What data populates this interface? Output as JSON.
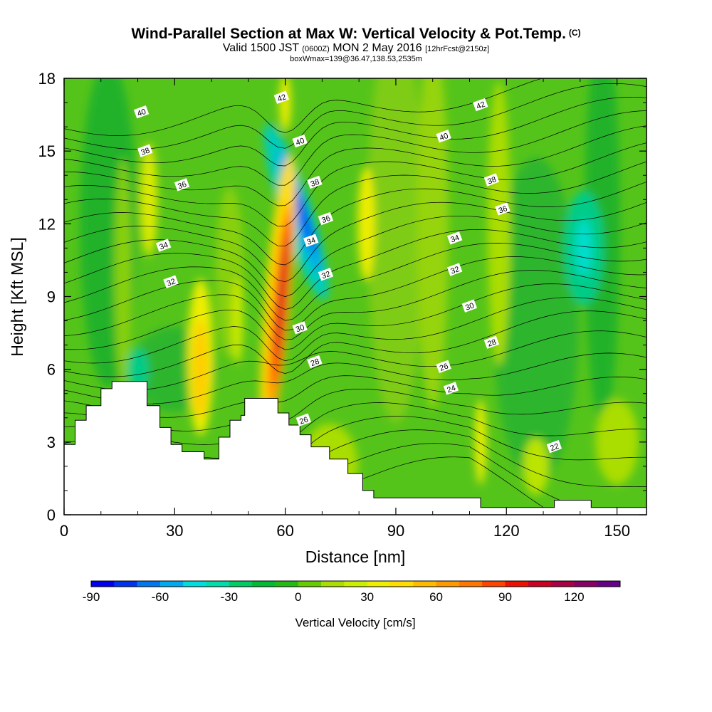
{
  "title": "Wind-Parallel Section at Max W: Vertical Velocity & Pot.Temp.",
  "title_mark": "(C)",
  "subtitle": {
    "main_a": "Valid 1500 JST",
    "small_a": "(0600Z)",
    "main_b": "MON 2 May 2016",
    "small_b": "[12hrFcst@2150z]"
  },
  "subtitle2": "boxWmax=139@36.47,138.53,2535m",
  "chart_data": {
    "type": "heatmap",
    "xlabel": "Distance [nm]",
    "ylabel": "Height [Kft MSL]",
    "xlim": [
      0,
      158
    ],
    "ylim": [
      0,
      18
    ],
    "x_ticks": [
      0,
      30,
      60,
      90,
      120,
      150
    ],
    "y_ticks": [
      0,
      3,
      6,
      9,
      12,
      15,
      18
    ],
    "colorbar": {
      "label": "Vertical Velocity [cm/s]",
      "tick_labels": [
        "-90",
        "-60",
        "-30",
        "0",
        "30",
        "60",
        "90",
        "120"
      ],
      "tick_values": [
        -90,
        -60,
        -30,
        0,
        30,
        60,
        90,
        120
      ],
      "range": [
        -90,
        140
      ],
      "colors": [
        "#0000ee",
        "#0033ee",
        "#0077ee",
        "#00aaee",
        "#00dddd",
        "#00ddaa",
        "#00cc66",
        "#00bb33",
        "#22bb11",
        "#66cc00",
        "#aadd00",
        "#ccee00",
        "#eeee00",
        "#ffdd00",
        "#ffbb00",
        "#ff9900",
        "#ff7700",
        "#ff4400",
        "#ee1100",
        "#cc0022",
        "#aa0044",
        "#880066",
        "#660088"
      ]
    },
    "terrain": [
      [
        0,
        2.9
      ],
      [
        3,
        3.9
      ],
      [
        6,
        4.5
      ],
      [
        10,
        5.2
      ],
      [
        13,
        5.5
      ],
      [
        22,
        5.5
      ],
      [
        22.5,
        4.5
      ],
      [
        26,
        3.6
      ],
      [
        29,
        2.9
      ],
      [
        32,
        2.6
      ],
      [
        38,
        2.3
      ],
      [
        42,
        3.2
      ],
      [
        45,
        3.9
      ],
      [
        48,
        4.1
      ],
      [
        49,
        4.8
      ],
      [
        57,
        4.8
      ],
      [
        58,
        4.2
      ],
      [
        61,
        3.7
      ],
      [
        64,
        3.3
      ],
      [
        67,
        2.8
      ],
      [
        72,
        2.3
      ],
      [
        77,
        1.7
      ],
      [
        81,
        1.0
      ],
      [
        84,
        0.7
      ],
      [
        92,
        0.7
      ],
      [
        103,
        0.7
      ],
      [
        113,
        0.3
      ],
      [
        121,
        0.3
      ],
      [
        132,
        0.3
      ],
      [
        133,
        0.6
      ],
      [
        140,
        0.6
      ],
      [
        143,
        0.3
      ],
      [
        158,
        0.3
      ]
    ],
    "theta_labels": [
      {
        "text": "42",
        "x": 59,
        "y": 17.2
      },
      {
        "text": "40",
        "x": 21,
        "y": 16.6
      },
      {
        "text": "38",
        "x": 22,
        "y": 15.0
      },
      {
        "text": "36",
        "x": 32,
        "y": 13.6
      },
      {
        "text": "34",
        "x": 27,
        "y": 11.1
      },
      {
        "text": "32",
        "x": 29,
        "y": 9.6
      },
      {
        "text": "40",
        "x": 64,
        "y": 15.4
      },
      {
        "text": "38",
        "x": 68,
        "y": 13.7
      },
      {
        "text": "36",
        "x": 71,
        "y": 12.2
      },
      {
        "text": "34",
        "x": 67,
        "y": 11.3
      },
      {
        "text": "32",
        "x": 71,
        "y": 9.9
      },
      {
        "text": "30",
        "x": 64,
        "y": 7.7
      },
      {
        "text": "28",
        "x": 68,
        "y": 6.3
      },
      {
        "text": "26",
        "x": 65,
        "y": 3.9
      },
      {
        "text": "42",
        "x": 113,
        "y": 16.9
      },
      {
        "text": "40",
        "x": 103,
        "y": 15.6
      },
      {
        "text": "38",
        "x": 116,
        "y": 13.8
      },
      {
        "text": "36",
        "x": 119,
        "y": 12.6
      },
      {
        "text": "34",
        "x": 106,
        "y": 11.4
      },
      {
        "text": "32",
        "x": 106,
        "y": 10.1
      },
      {
        "text": "30",
        "x": 110,
        "y": 8.6
      },
      {
        "text": "28",
        "x": 116,
        "y": 7.1
      },
      {
        "text": "26",
        "x": 103,
        "y": 6.1
      },
      {
        "text": "24",
        "x": 105,
        "y": 5.2
      },
      {
        "text": "22",
        "x": 133,
        "y": 2.8
      }
    ]
  }
}
